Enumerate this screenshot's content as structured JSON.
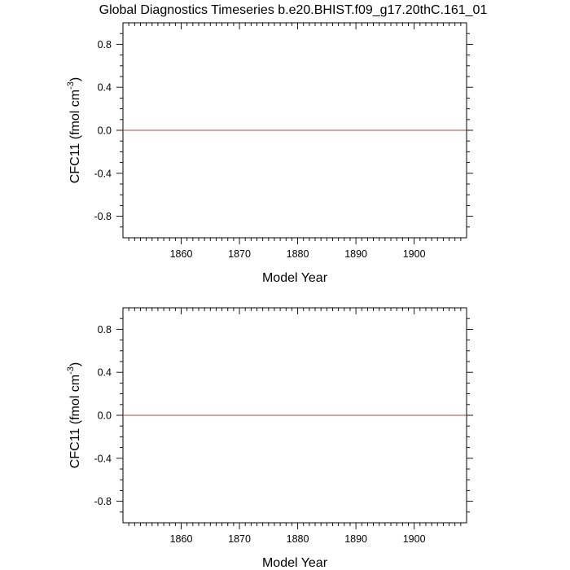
{
  "figure": {
    "title": "Global Diagnostics Timeseries b.e20.BHIST.f09_g17.20thC.161_01"
  },
  "chart_data": [
    {
      "type": "line",
      "xlabel": "Model Year",
      "ylabel_main": "CFC11 (fmol cm",
      "ylabel_sup": "-3",
      "ylabel_end": ")",
      "xlim": [
        1850,
        1909
      ],
      "ylim": [
        -1.0,
        1.0
      ],
      "xticks": [
        1860,
        1870,
        1880,
        1890,
        1900
      ],
      "xtick_labels": [
        "1860",
        "1870",
        "1880",
        "1890",
        "1900"
      ],
      "yticks": [
        0.8,
        0.4,
        0.0,
        -0.4,
        -0.8
      ],
      "ytick_labels": [
        "0.8",
        "0.4",
        "0.0",
        "-0.4",
        "-0.8"
      ],
      "reference_line_y": 0.0,
      "series": [
        {
          "color": "#b44a3c",
          "x": [
            1850,
            1909
          ],
          "y": [
            0.0,
            0.0
          ]
        }
      ]
    },
    {
      "type": "line",
      "xlabel": "Model Year",
      "ylabel_main": "CFC11 (fmol cm",
      "ylabel_sup": "-3",
      "ylabel_end": ")",
      "xlim": [
        1850,
        1909
      ],
      "ylim": [
        -1.0,
        1.0
      ],
      "xticks": [
        1860,
        1870,
        1880,
        1890,
        1900
      ],
      "xtick_labels": [
        "1860",
        "1870",
        "1880",
        "1890",
        "1900"
      ],
      "yticks": [
        0.8,
        0.4,
        0.0,
        -0.4,
        -0.8
      ],
      "ytick_labels": [
        "0.8",
        "0.4",
        "0.0",
        "-0.4",
        "-0.8"
      ],
      "reference_line_y": 0.0,
      "series": [
        {
          "color": "#b44a3c",
          "x": [
            1850,
            1909
          ],
          "y": [
            0.0,
            0.0
          ]
        }
      ]
    }
  ]
}
